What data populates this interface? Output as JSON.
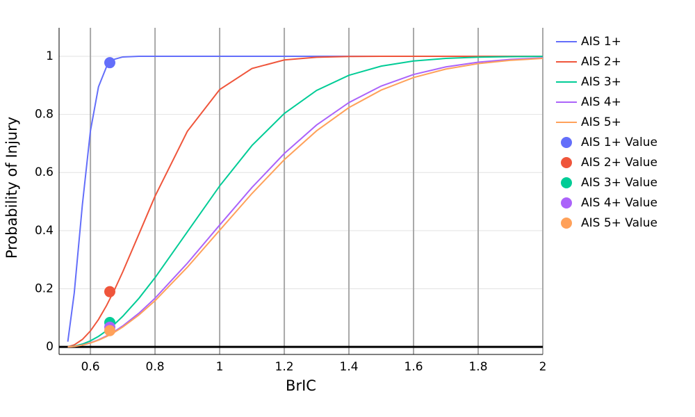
{
  "chart_data": {
    "type": "line",
    "x_label": "BrIC",
    "y_label": "Probability of Injury",
    "xlim": [
      0.503,
      2
    ],
    "ylim": [
      -0.026,
      1.098
    ],
    "xticks": [
      0.6,
      0.8,
      1,
      1.2,
      1.4,
      1.6,
      1.8,
      2
    ],
    "yticks": [
      0,
      0.2,
      0.4,
      0.6,
      0.8,
      1
    ],
    "grid": true,
    "x": [
      0.53,
      0.55,
      0.575,
      0.6,
      0.625,
      0.65,
      0.675,
      0.7,
      0.75,
      0.8,
      0.9,
      1.0,
      1.1,
      1.2,
      1.3,
      1.4,
      1.5,
      1.6,
      1.7,
      1.8,
      1.9,
      2.0
    ],
    "series": [
      {
        "name": "AIS 1+",
        "color": "#636efa",
        "mode": "lines",
        "values": [
          0.018,
          0.186,
          0.488,
          0.743,
          0.895,
          0.9645,
          0.99,
          0.9977,
          1,
          1,
          1,
          1,
          1,
          1,
          1,
          1,
          1,
          1,
          1,
          1,
          1,
          1
        ]
      },
      {
        "name": "AIS 2+",
        "color": "#ef553b",
        "mode": "lines",
        "values": [
          0.0005,
          0.0069,
          0.0254,
          0.0549,
          0.0944,
          0.1424,
          0.1976,
          0.258,
          0.3879,
          0.5185,
          0.7418,
          0.8855,
          0.9581,
          0.9873,
          0.9968,
          0.9993,
          0.9999,
          1,
          1,
          1,
          1,
          1
        ]
      },
      {
        "name": "AIS 3+",
        "color": "#00cc96",
        "mode": "lines",
        "values": [
          0.0002,
          0.0026,
          0.0095,
          0.0208,
          0.0362,
          0.0556,
          0.0787,
          0.1052,
          0.167,
          0.2382,
          0.3959,
          0.5538,
          0.693,
          0.8032,
          0.8825,
          0.9346,
          0.9661,
          0.9837,
          0.9927,
          0.9969,
          0.9988,
          0.9996
        ]
      },
      {
        "name": "AIS 4+",
        "color": "#ab63fa",
        "mode": "lines",
        "values": [
          0.0001,
          0.0017,
          0.0064,
          0.0141,
          0.0245,
          0.0378,
          0.0537,
          0.0721,
          0.1158,
          0.1675,
          0.2879,
          0.4193,
          0.5486,
          0.6654,
          0.7636,
          0.8408,
          0.8977,
          0.9374,
          0.9635,
          0.9797,
          0.9892,
          0.9945
        ]
      },
      {
        "name": "AIS 5+",
        "color": "#ffa15a",
        "mode": "lines",
        "values": [
          0.0001,
          0.0016,
          0.0061,
          0.0133,
          0.0232,
          0.0357,
          0.0508,
          0.0682,
          0.1097,
          0.1589,
          0.2742,
          0.4013,
          0.5279,
          0.6442,
          0.7436,
          0.8235,
          0.8838,
          0.9268,
          0.956,
          0.9747,
          0.9861,
          0.9927
        ]
      },
      {
        "name": "AIS 1+ Value",
        "color": "#636efa",
        "mode": "markers",
        "x": [
          0.66
        ],
        "values": [
          0.978
        ]
      },
      {
        "name": "AIS 2+ Value",
        "color": "#ef553b",
        "mode": "markers",
        "x": [
          0.66
        ],
        "values": [
          0.19
        ]
      },
      {
        "name": "AIS 3+ Value",
        "color": "#00cc96",
        "mode": "markers",
        "x": [
          0.66
        ],
        "values": [
          0.084
        ]
      },
      {
        "name": "AIS 4+ Value",
        "color": "#ab63fa",
        "mode": "markers",
        "x": [
          0.66
        ],
        "values": [
          0.068
        ]
      },
      {
        "name": "AIS 5+ Value",
        "color": "#ffa15a",
        "mode": "markers",
        "x": [
          0.66
        ],
        "values": [
          0.056
        ]
      }
    ]
  }
}
